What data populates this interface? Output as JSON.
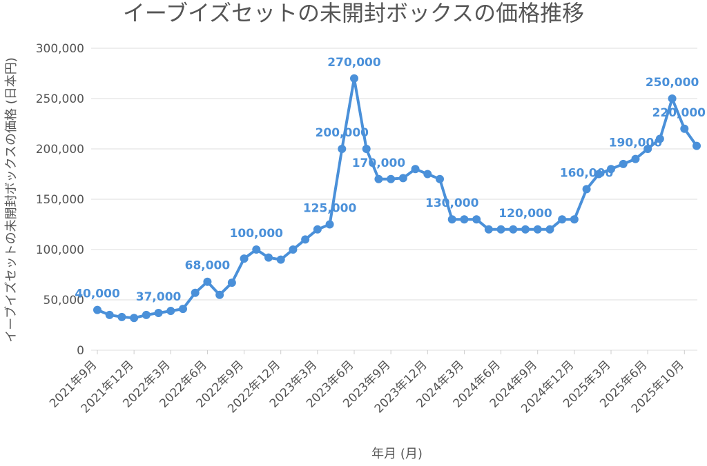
{
  "chart_data": {
    "type": "line",
    "title": "イーブイズセットの未開封ボックスの価格推移",
    "xlabel": "年月 (月)",
    "ylabel": "イーブイズセットの未開封ボックスの価格 (日本円)",
    "ylim": [
      0,
      300000
    ],
    "yticks": [
      "0",
      "50,000",
      "100,000",
      "150,000",
      "200,000",
      "250,000",
      "300,000"
    ],
    "grid": true,
    "line_color": "#4a90d9",
    "x_tick_labels": [
      "2021年9月",
      "2021年12月",
      "2022年3月",
      "2022年6月",
      "2022年9月",
      "2022年12月",
      "2023年3月",
      "2023年6月",
      "2023年9月",
      "2023年12月",
      "2024年3月",
      "2024年6月",
      "2024年9月",
      "2024年12月",
      "2025年3月",
      "2025年6月",
      "2025年10月"
    ],
    "x_tick_index": [
      0,
      3,
      6,
      9,
      12,
      15,
      18,
      21,
      24,
      27,
      30,
      33,
      36,
      39,
      42,
      45,
      48
    ],
    "values": [
      40000,
      35000,
      33000,
      32000,
      35000,
      37000,
      39000,
      41000,
      57000,
      68000,
      55000,
      67000,
      91000,
      100000,
      92000,
      90000,
      100000,
      110000,
      120000,
      125000,
      200000,
      270000,
      200000,
      170000,
      170000,
      171000,
      180000,
      175000,
      170000,
      130000,
      130000,
      130000,
      120000,
      120000,
      120000,
      120000,
      120000,
      120000,
      130000,
      130000,
      160000,
      175000,
      180000,
      185000,
      190000,
      200000,
      210000,
      250000,
      220000,
      203000
    ],
    "data_labels": [
      {
        "index": 0,
        "text": "40,000"
      },
      {
        "index": 5,
        "text": "37,000"
      },
      {
        "index": 9,
        "text": "68,000"
      },
      {
        "index": 13,
        "text": "100,000"
      },
      {
        "index": 19,
        "text": "125,000"
      },
      {
        "index": 20,
        "text": "200,000"
      },
      {
        "index": 21,
        "text": "270,000"
      },
      {
        "index": 23,
        "text": "170,000"
      },
      {
        "index": 29,
        "text": "130,000"
      },
      {
        "index": 35,
        "text": "120,000"
      },
      {
        "index": 40,
        "text": "160,000"
      },
      {
        "index": 44,
        "text": "190,000"
      },
      {
        "index": 47,
        "text": "250,000"
      },
      {
        "index": 48,
        "text": "220,000"
      }
    ]
  }
}
